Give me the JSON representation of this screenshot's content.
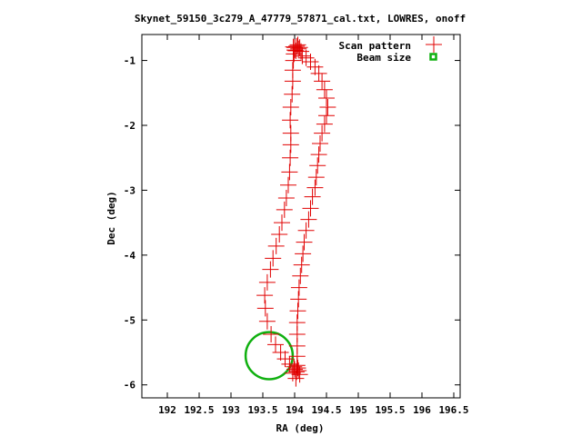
{
  "chart_data": {
    "type": "scatter",
    "title": "Skynet_59150_3c279_A_47779_57871_cal.txt, LOWRES, onoff",
    "xlabel": "RA (deg)",
    "ylabel": "Dec (deg)",
    "xlim": [
      191.6,
      196.6
    ],
    "ylim": [
      -6.2,
      -0.6
    ],
    "xticks": [
      192,
      192.5,
      193,
      193.5,
      194,
      194.5,
      195,
      195.5,
      196,
      196.5
    ],
    "xtick_labels": [
      "192",
      "192.5",
      "193",
      "193.5",
      "194",
      "194.5",
      "195",
      "195.5",
      "196",
      "196.5"
    ],
    "yticks": [
      -1,
      -2,
      -3,
      -4,
      -5,
      -6
    ],
    "ytick_labels": [
      "-1",
      "-2",
      "-3",
      "-4",
      "-5",
      "-6"
    ],
    "grid": false,
    "legend_position": "top-right",
    "series": [
      {
        "name": "Scan pattern",
        "marker": "plus",
        "color": "#e00000",
        "points": [
          [
            194.0,
            -0.8
          ],
          [
            194.03,
            -0.78
          ],
          [
            194.06,
            -0.82
          ],
          [
            194.02,
            -0.85
          ],
          [
            194.05,
            -0.76
          ],
          [
            194.0,
            -0.84
          ],
          [
            194.08,
            -0.8
          ],
          [
            193.98,
            -0.79
          ],
          [
            194.1,
            -0.86
          ],
          [
            194.12,
            -0.93
          ],
          [
            194.18,
            -0.96
          ],
          [
            194.25,
            -1.02
          ],
          [
            194.32,
            -1.1
          ],
          [
            194.38,
            -1.2
          ],
          [
            194.43,
            -1.32
          ],
          [
            194.47,
            -1.45
          ],
          [
            194.5,
            -1.58
          ],
          [
            194.52,
            -1.72
          ],
          [
            194.5,
            -1.85
          ],
          [
            194.47,
            -1.98
          ],
          [
            194.43,
            -2.12
          ],
          [
            194.4,
            -2.28
          ],
          [
            194.38,
            -2.45
          ],
          [
            194.36,
            -2.62
          ],
          [
            194.34,
            -2.8
          ],
          [
            194.32,
            -2.96
          ],
          [
            194.28,
            -3.1
          ],
          [
            194.25,
            -3.28
          ],
          [
            194.22,
            -3.45
          ],
          [
            194.18,
            -3.62
          ],
          [
            194.15,
            -3.8
          ],
          [
            194.13,
            -3.98
          ],
          [
            194.11,
            -4.15
          ],
          [
            194.09,
            -4.32
          ],
          [
            194.07,
            -4.5
          ],
          [
            194.06,
            -4.68
          ],
          [
            194.05,
            -4.86
          ],
          [
            194.04,
            -5.04
          ],
          [
            194.04,
            -5.22
          ],
          [
            194.04,
            -5.4
          ],
          [
            194.04,
            -5.56
          ],
          [
            194.04,
            -5.7
          ],
          [
            194.03,
            -5.8
          ],
          [
            194.0,
            -5.76
          ],
          [
            194.06,
            -5.78
          ],
          [
            193.97,
            -5.82
          ],
          [
            194.08,
            -5.84
          ],
          [
            193.99,
            -5.72
          ],
          [
            194.02,
            -5.9
          ],
          [
            194.05,
            -5.74
          ],
          [
            193.92,
            -5.68
          ],
          [
            193.85,
            -5.6
          ],
          [
            193.78,
            -5.5
          ],
          [
            193.7,
            -5.38
          ],
          [
            193.63,
            -5.22
          ],
          [
            193.57,
            -5.02
          ],
          [
            193.54,
            -4.82
          ],
          [
            193.53,
            -4.62
          ],
          [
            193.57,
            -4.42
          ],
          [
            193.62,
            -4.22
          ],
          [
            193.66,
            -4.05
          ],
          [
            193.71,
            -3.86
          ],
          [
            193.76,
            -3.68
          ],
          [
            193.8,
            -3.5
          ],
          [
            193.84,
            -3.3
          ],
          [
            193.87,
            -3.12
          ],
          [
            193.9,
            -2.92
          ],
          [
            193.92,
            -2.72
          ],
          [
            193.93,
            -2.5
          ],
          [
            193.94,
            -2.3
          ],
          [
            193.94,
            -2.12
          ],
          [
            193.93,
            -1.92
          ],
          [
            193.94,
            -1.72
          ],
          [
            193.96,
            -1.52
          ],
          [
            193.97,
            -1.32
          ],
          [
            193.97,
            -1.15
          ],
          [
            193.98,
            -1.0
          ],
          [
            193.99,
            -0.9
          ]
        ]
      },
      {
        "name": "Beam size",
        "marker": "circle",
        "color": "#10b010",
        "center": [
          193.6,
          -5.55
        ],
        "radius": 0.37
      }
    ]
  }
}
